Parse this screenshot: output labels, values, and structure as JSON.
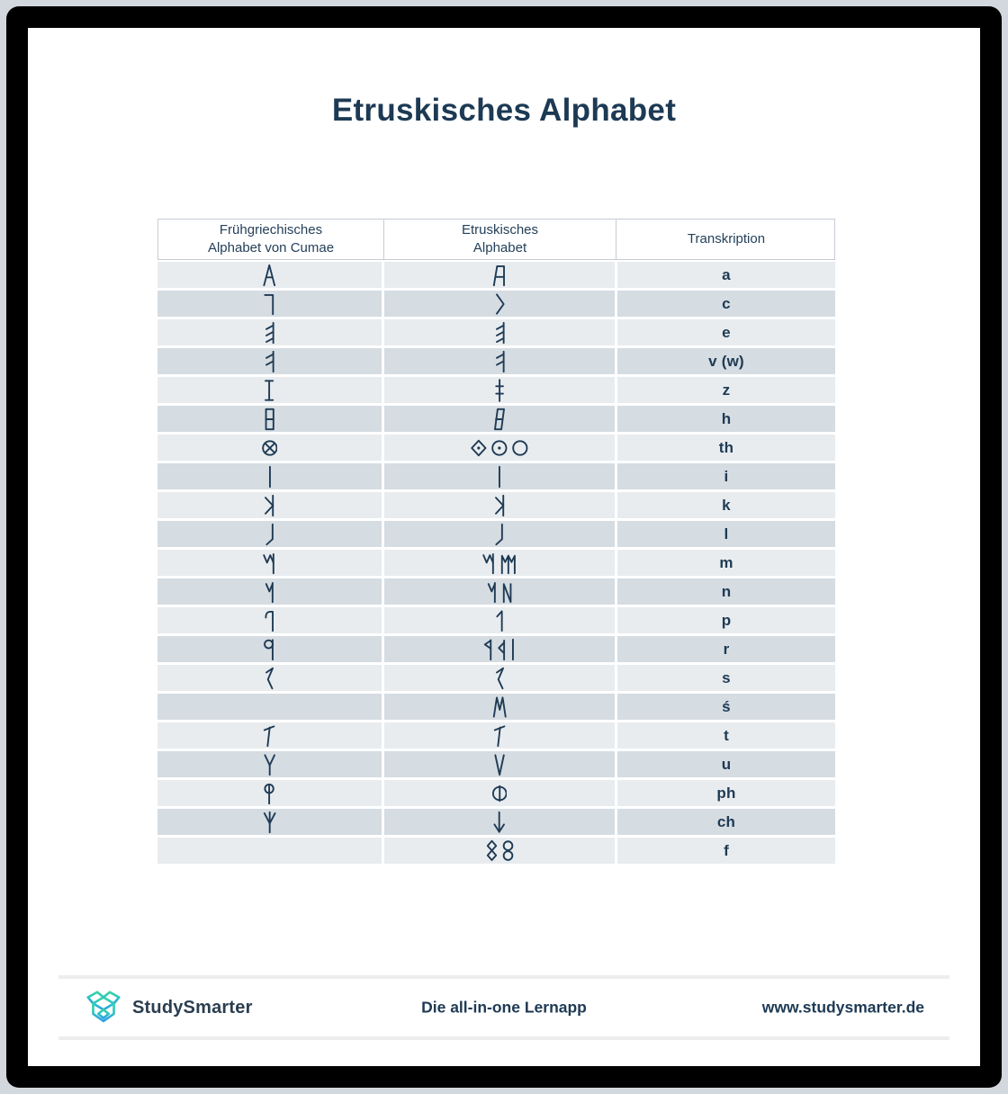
{
  "page": {
    "title": "Etruskisches Alphabet"
  },
  "table": {
    "headers": [
      "Frühgriechisches\nAlphabet von Cumae",
      "Etruskisches\nAlphabet",
      "Transkription"
    ],
    "rows": [
      {
        "greek": [
          "alpha-pointed"
        ],
        "etruscan": [
          "a-reversed"
        ],
        "transcription": "a"
      },
      {
        "greek": [
          "gamma-angle"
        ],
        "etruscan": [
          "c-chevron"
        ],
        "transcription": "c"
      },
      {
        "greek": [
          "e-mirrored"
        ],
        "etruscan": [
          "e-mirrored"
        ],
        "transcription": "e"
      },
      {
        "greek": [
          "v-digamma"
        ],
        "etruscan": [
          "v-digamma"
        ],
        "transcription": "v (w)"
      },
      {
        "greek": [
          "z-serif-i"
        ],
        "etruscan": [
          "z-double-bar"
        ],
        "transcription": "z"
      },
      {
        "greek": [
          "heta-box"
        ],
        "etruscan": [
          "heta-slanted"
        ],
        "transcription": "h"
      },
      {
        "greek": [
          "theta-crossed-circle"
        ],
        "etruscan": [
          "theta-diamond-dot",
          "theta-dotted-circle",
          "theta-circle"
        ],
        "transcription": "th"
      },
      {
        "greek": [
          "i-stroke"
        ],
        "etruscan": [
          "i-stroke"
        ],
        "transcription": "i"
      },
      {
        "greek": [
          "k-mirrored"
        ],
        "etruscan": [
          "k-mirrored"
        ],
        "transcription": "k"
      },
      {
        "greek": [
          "l-hooked"
        ],
        "etruscan": [
          "l-hooked"
        ],
        "transcription": "l"
      },
      {
        "greek": [
          "m-zigzag-tail"
        ],
        "etruscan": [
          "m-zigzag-tail",
          "m-three-legs"
        ],
        "transcription": "m"
      },
      {
        "greek": [
          "n-zigzag-tail"
        ],
        "etruscan": [
          "n-zigzag-tail",
          "n-angular"
        ],
        "transcription": "n"
      },
      {
        "greek": [
          "p-hooked"
        ],
        "etruscan": [
          "p-flag"
        ],
        "transcription": "p"
      },
      {
        "greek": [
          "r-round-bowl"
        ],
        "etruscan": [
          "r-triangle-bowl",
          "r-mid-triangle",
          "i-stroke"
        ],
        "transcription": "r"
      },
      {
        "greek": [
          "s-lightning"
        ],
        "etruscan": [
          "s-lightning"
        ],
        "transcription": "s"
      },
      {
        "greek": [],
        "etruscan": [
          "sade-m"
        ],
        "transcription": "ś"
      },
      {
        "greek": [
          "t-tilted"
        ],
        "etruscan": [
          "t-tilted"
        ],
        "transcription": "t"
      },
      {
        "greek": [
          "u-upsilon"
        ],
        "etruscan": [
          "u-vee"
        ],
        "transcription": "u"
      },
      {
        "greek": [
          "ph-phi"
        ],
        "etruscan": [
          "ph-circle-bar"
        ],
        "transcription": "ph"
      },
      {
        "greek": [
          "ch-psi"
        ],
        "etruscan": [
          "ch-down-arrow"
        ],
        "transcription": "ch"
      },
      {
        "greek": [],
        "etruscan": [
          "f-diamond-eight",
          "f-round-eight"
        ],
        "transcription": "f"
      }
    ]
  },
  "footer": {
    "brand": "StudySmarter",
    "tagline": "Die all-in-one Lernapp",
    "website": "www.studysmarter.de"
  },
  "colors": {
    "ink": "#1e3a54",
    "row_light": "#e8ecef",
    "row_dark": "#d5dce2",
    "logo_teal": "#38d3a2",
    "logo_blue": "#2a9de6"
  }
}
